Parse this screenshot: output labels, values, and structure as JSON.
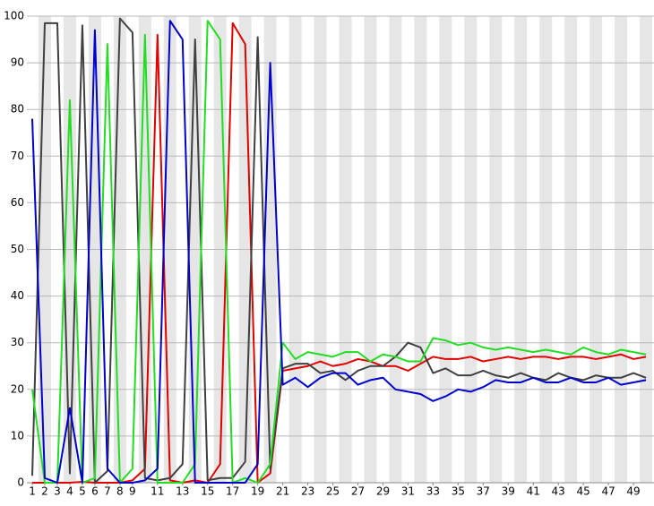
{
  "chart_data": {
    "type": "line",
    "x": [
      1,
      2,
      3,
      4,
      5,
      6,
      7,
      8,
      9,
      10,
      11,
      12,
      13,
      14,
      15,
      16,
      17,
      18,
      19,
      20,
      21,
      22,
      23,
      24,
      25,
      26,
      27,
      28,
      29,
      30,
      31,
      32,
      33,
      34,
      35,
      36,
      37,
      38,
      39,
      40,
      41,
      42,
      43,
      44,
      45,
      46,
      47,
      48,
      49,
      50
    ],
    "series": [
      {
        "color": "#e00000",
        "values": [
          0,
          0,
          0,
          0,
          0.2,
          0,
          0,
          0,
          0.5,
          3,
          96,
          0.5,
          0,
          0.5,
          0,
          4,
          98.5,
          94,
          0,
          2,
          24,
          24.5,
          25,
          26,
          25,
          25.5,
          26.5,
          26,
          25,
          25,
          24,
          25.5,
          27,
          26.5,
          26.5,
          27,
          26,
          26.5,
          27,
          26.5,
          27,
          27,
          26.5,
          27,
          27,
          26.5,
          27,
          27.5,
          26.5,
          27
        ]
      },
      {
        "color": "#404040",
        "values": [
          1.5,
          98.5,
          98.5,
          2,
          98,
          0,
          2.5,
          99.5,
          96.5,
          1,
          0.5,
          1,
          4,
          95,
          0.5,
          1,
          1,
          4.5,
          95.5,
          3,
          24.5,
          25.5,
          25.5,
          23.5,
          24,
          22,
          24,
          25,
          25,
          27,
          30,
          29,
          23.5,
          24.5,
          23,
          23,
          24,
          23,
          22.5,
          23.5,
          22.5,
          22,
          23.5,
          22.5,
          22,
          23,
          22.5,
          22.5,
          23.5,
          22.5
        ]
      },
      {
        "color": "#22dd22",
        "values": [
          20,
          0,
          0,
          82,
          0,
          1,
          94,
          0,
          3,
          96,
          0,
          0,
          0,
          4,
          99,
          95,
          0,
          1,
          0,
          4,
          30,
          26.5,
          28,
          27.5,
          27,
          28,
          28,
          26,
          27.5,
          27,
          26,
          26,
          31,
          30.5,
          29.5,
          30,
          29,
          28.5,
          29,
          28.5,
          28,
          28.5,
          28,
          27.5,
          29,
          28,
          27.5,
          28.5,
          28,
          27.5
        ]
      },
      {
        "color": "#0000cc",
        "values": [
          78,
          1,
          0,
          16,
          0,
          97,
          3,
          0,
          0,
          0.5,
          3,
          99,
          95,
          0,
          0,
          0,
          0,
          0,
          4,
          90,
          21,
          22.5,
          20.5,
          22.5,
          23.5,
          23.5,
          21,
          22,
          22.5,
          20,
          19.5,
          19,
          17.5,
          18.5,
          20,
          19.5,
          20.5,
          22,
          21.5,
          21.5,
          22.5,
          21.5,
          21.5,
          22.5,
          21.5,
          21.5,
          22.5,
          21,
          21.5,
          22
        ]
      }
    ],
    "xlim": [
      0.57,
      50.64
    ],
    "xticks": [
      1,
      2,
      3,
      4,
      5,
      6,
      7,
      8,
      9,
      11,
      13,
      15,
      17,
      19,
      21,
      23,
      25,
      27,
      29,
      31,
      33,
      35,
      37,
      39,
      41,
      43,
      45,
      47,
      49
    ],
    "ylim": [
      0,
      100
    ],
    "yticks": [
      0,
      10,
      20,
      30,
      40,
      50,
      60,
      70,
      80,
      90,
      100
    ],
    "grid": true
  }
}
